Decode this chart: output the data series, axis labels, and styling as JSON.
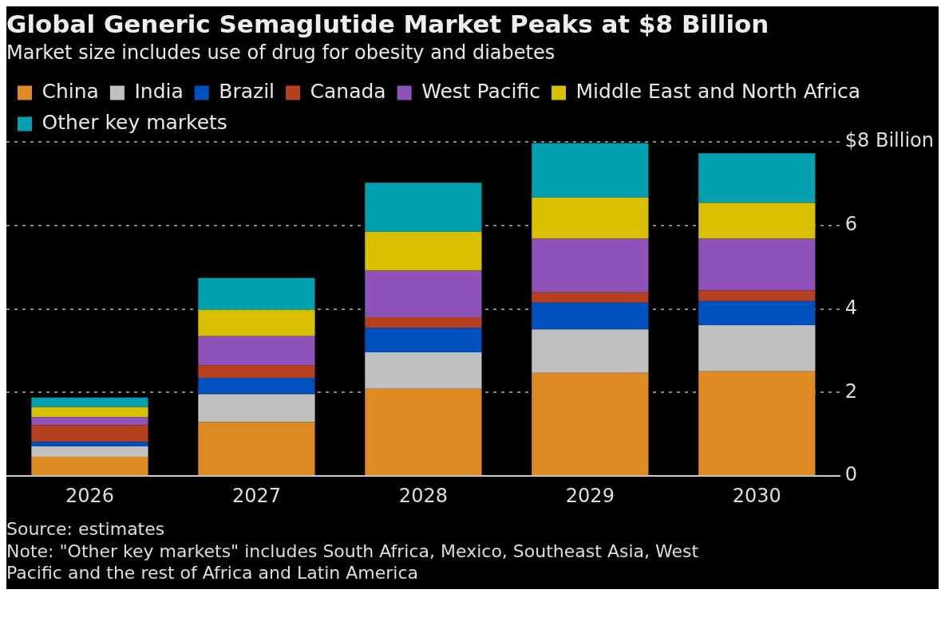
{
  "chart_data": {
    "type": "bar",
    "title": "Global Generic Semaglutide Market Peaks at $8 Billion",
    "subtitle": "Market size includes use of drug for obesity and diabetes",
    "categories": [
      "2026",
      "2027",
      "2028",
      "2029",
      "2030"
    ],
    "stacked": true,
    "legend": "top left",
    "grid": "y",
    "ylim": [
      0,
      8
    ],
    "yticks": [
      0,
      2,
      4,
      6,
      {
        "value": 8,
        "label": "$8 Billion"
      }
    ],
    "series": [
      {
        "name": "China",
        "color": "#dd8a23",
        "values": [
          0.46,
          1.29,
          2.09,
          2.47,
          2.51
        ]
      },
      {
        "name": "India",
        "color": "#c0c0c0",
        "values": [
          0.25,
          0.67,
          0.87,
          1.04,
          1.1
        ]
      },
      {
        "name": "Brazil",
        "color": "#0050bd",
        "values": [
          0.11,
          0.39,
          0.59,
          0.64,
          0.58
        ]
      },
      {
        "name": "Canada",
        "color": "#b5401f",
        "values": [
          0.4,
          0.3,
          0.25,
          0.25,
          0.25
        ]
      },
      {
        "name": "West Pacific",
        "color": "#8e52b8",
        "values": [
          0.19,
          0.7,
          1.12,
          1.28,
          1.24
        ]
      },
      {
        "name": "Middle East and North Africa",
        "color": "#d8c000",
        "values": [
          0.24,
          0.63,
          0.93,
          0.99,
          0.86
        ]
      },
      {
        "name": "Other key markets",
        "color": "#00a0b0",
        "values": [
          0.23,
          0.76,
          1.17,
          1.3,
          1.19
        ]
      }
    ],
    "annotations": [
      "Source: estimates",
      "Note: \"Other key markets\" includes South Africa, Mexico, Southeast Asia, West Pacific and the rest of Africa and Latin America"
    ]
  }
}
